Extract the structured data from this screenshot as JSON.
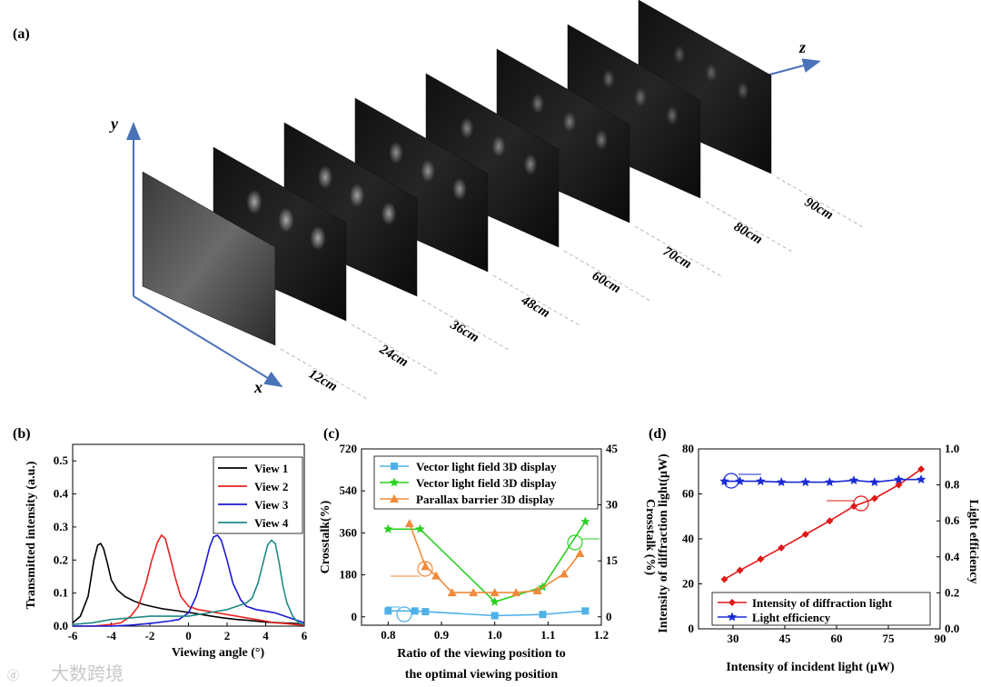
{
  "panel_a": {
    "label": "(a)",
    "axis_x": "x",
    "axis_y": "y",
    "axis_z": "z",
    "distances": [
      "12cm",
      "24cm",
      "36cm",
      "48cm",
      "60cm",
      "70cm",
      "80cm",
      "90cm"
    ]
  },
  "watermark": "大数跨境",
  "colors": {
    "black": "#000000",
    "red": "#e8231f",
    "blue": "#1a1ad6",
    "teal": "#1f8a84",
    "lightblue": "#4fb0e8",
    "green": "#2ad11e",
    "orange": "#f08a3a",
    "diamond_red": "#e01818",
    "star_blue": "#1a2bd6"
  },
  "chart_data": [
    {
      "panel": "(b)",
      "type": "line",
      "title": "",
      "xlabel": "Viewing angle (°)",
      "ylabel": "Transmitted intensity (a.u.)",
      "xlim": [
        -6,
        6
      ],
      "ylim": [
        0,
        0.55
      ],
      "xticks": [
        "-6",
        "-4",
        "-2",
        "0",
        "2",
        "4",
        "6"
      ],
      "yticks": [
        "0.0",
        "0.1",
        "0.2",
        "0.3",
        "0.4",
        "0.5"
      ],
      "legend": "top-right",
      "series": [
        {
          "name": "View 1",
          "color": "#000000",
          "x": [
            -6,
            -5.6,
            -5.2,
            -4.9,
            -4.7,
            -4.55,
            -4.4,
            -4.2,
            -4,
            -3.7,
            -3.3,
            -2.8,
            -2.3,
            -1.8,
            -1.3,
            -0.8,
            -0.3,
            0.2,
            0.7,
            1.2,
            1.8,
            2.5,
            3.2,
            4,
            4.8,
            5.5,
            6
          ],
          "y": [
            0.01,
            0.03,
            0.09,
            0.2,
            0.245,
            0.25,
            0.235,
            0.19,
            0.14,
            0.11,
            0.09,
            0.075,
            0.065,
            0.058,
            0.052,
            0.048,
            0.044,
            0.04,
            0.035,
            0.03,
            0.025,
            0.02,
            0.017,
            0.012,
            0.01,
            0.008,
            0.005
          ]
        },
        {
          "name": "View 2",
          "color": "#e8231f",
          "x": [
            -6,
            -5,
            -4,
            -3.5,
            -3,
            -2.6,
            -2.2,
            -1.9,
            -1.6,
            -1.4,
            -1.2,
            -1,
            -0.7,
            -0.4,
            0,
            0.5,
            1,
            1.5,
            2,
            2.5,
            3,
            3.5,
            4,
            4.5,
            5,
            5.5,
            6
          ],
          "y": [
            0,
            0,
            0.005,
            0.01,
            0.03,
            0.06,
            0.13,
            0.2,
            0.255,
            0.275,
            0.265,
            0.22,
            0.15,
            0.09,
            0.06,
            0.05,
            0.045,
            0.04,
            0.035,
            0.03,
            0.025,
            0.02,
            0.015,
            0.01,
            0.008,
            0.005,
            0.003
          ]
        },
        {
          "name": "View 3",
          "color": "#1a1ad6",
          "x": [
            -6,
            -4,
            -3,
            -2,
            -1,
            -0.5,
            0,
            0.4,
            0.8,
            1.1,
            1.3,
            1.5,
            1.7,
            2,
            2.3,
            2.7,
            3,
            3.5,
            4,
            4.5,
            5,
            5.5,
            6
          ],
          "y": [
            0,
            0,
            0.003,
            0.008,
            0.015,
            0.02,
            0.04,
            0.09,
            0.17,
            0.24,
            0.27,
            0.275,
            0.26,
            0.2,
            0.13,
            0.08,
            0.06,
            0.05,
            0.045,
            0.04,
            0.03,
            0.02,
            0.01
          ]
        },
        {
          "name": "View 4",
          "color": "#1f8a84",
          "x": [
            -6,
            -5,
            -4,
            -3,
            -2,
            -1,
            0,
            0.5,
            1,
            1.5,
            2,
            2.5,
            3,
            3.3,
            3.6,
            3.9,
            4.1,
            4.3,
            4.5,
            4.7,
            4.9,
            5.1,
            5.4,
            5.7,
            6
          ],
          "y": [
            0.005,
            0.01,
            0.02,
            0.025,
            0.03,
            0.03,
            0.03,
            0.035,
            0.04,
            0.045,
            0.05,
            0.06,
            0.07,
            0.085,
            0.13,
            0.2,
            0.245,
            0.26,
            0.25,
            0.19,
            0.12,
            0.07,
            0.03,
            0.01,
            0.005
          ]
        }
      ]
    },
    {
      "panel": "(c)",
      "type": "line",
      "title": "",
      "xlabel": "Ratio of the viewing position to",
      "xlabel2": "the optimal viewing position",
      "ylabel": "Crosstalk(%)",
      "ylabel_right": "Crosstalk (%)",
      "xlim": [
        0.75,
        1.2
      ],
      "ylim": [
        -36,
        720
      ],
      "ylim_right": [
        -2.25,
        45
      ],
      "xticks": [
        "0.8",
        "0.9",
        "1.0",
        "1.1",
        "1.2"
      ],
      "yticks": [
        "0",
        "180",
        "360",
        "540",
        "720"
      ],
      "yticks_right": [
        "0",
        "15",
        "30",
        "45"
      ],
      "legend": "top",
      "series": [
        {
          "name": "Vector light field 3D display",
          "color": "#4fb0e8",
          "marker": "square",
          "axis": "left",
          "x": [
            0.8,
            0.85,
            0.87,
            1.0,
            1.09,
            1.17
          ],
          "y": [
            25,
            25,
            22,
            5,
            10,
            25
          ]
        },
        {
          "name": "Vector light field 3D display",
          "color": "#2ad11e",
          "marker": "star",
          "axis": "right",
          "x": [
            0.8,
            0.86,
            1.0,
            1.09,
            1.17
          ],
          "y": [
            23.5,
            23.5,
            4,
            8,
            25.5
          ]
        },
        {
          "name": "Parallax barrier 3D display",
          "color": "#f08a3a",
          "marker": "triangle",
          "axis": "right",
          "x": [
            0.84,
            0.87,
            0.89,
            0.92,
            0.96,
            1.0,
            1.04,
            1.08,
            1.13,
            1.16
          ],
          "y": [
            25,
            13.5,
            11,
            6.5,
            6.5,
            6.5,
            6.5,
            7,
            11.5,
            17
          ]
        }
      ]
    },
    {
      "panel": "(d)",
      "type": "line",
      "title": "",
      "xlabel": "Intensity of incident light (μW)",
      "ylabel": "Intensity of diffraction light(μW)",
      "ylabel_right": "Light efficiency",
      "xlim": [
        20,
        90
      ],
      "ylim": [
        0,
        80
      ],
      "ylim_right": [
        0,
        1.0
      ],
      "xticks": [
        "30",
        "45",
        "60",
        "75",
        "90"
      ],
      "yticks": [
        "0",
        "20",
        "40",
        "60",
        "80"
      ],
      "yticks_right": [
        "0.0",
        "0.2",
        "0.4",
        "0.6",
        "0.8",
        "1.0"
      ],
      "legend": "bottom-right",
      "series": [
        {
          "name": "Intensity of diffraction light",
          "color": "#e01818",
          "marker": "diamond",
          "axis": "left",
          "x": [
            27.5,
            32,
            38,
            44,
            51,
            58,
            65,
            71,
            78,
            84.5
          ],
          "y": [
            22,
            26,
            31,
            36,
            42,
            48,
            54.5,
            58,
            64,
            71
          ]
        },
        {
          "name": "Light efficiency",
          "color": "#1a2bd6",
          "marker": "star",
          "axis": "right",
          "x": [
            27.5,
            32,
            38,
            44,
            51,
            58,
            65,
            71,
            78,
            84.5
          ],
          "y": [
            0.82,
            0.82,
            0.82,
            0.815,
            0.815,
            0.815,
            0.825,
            0.815,
            0.83,
            0.83
          ]
        }
      ]
    }
  ]
}
